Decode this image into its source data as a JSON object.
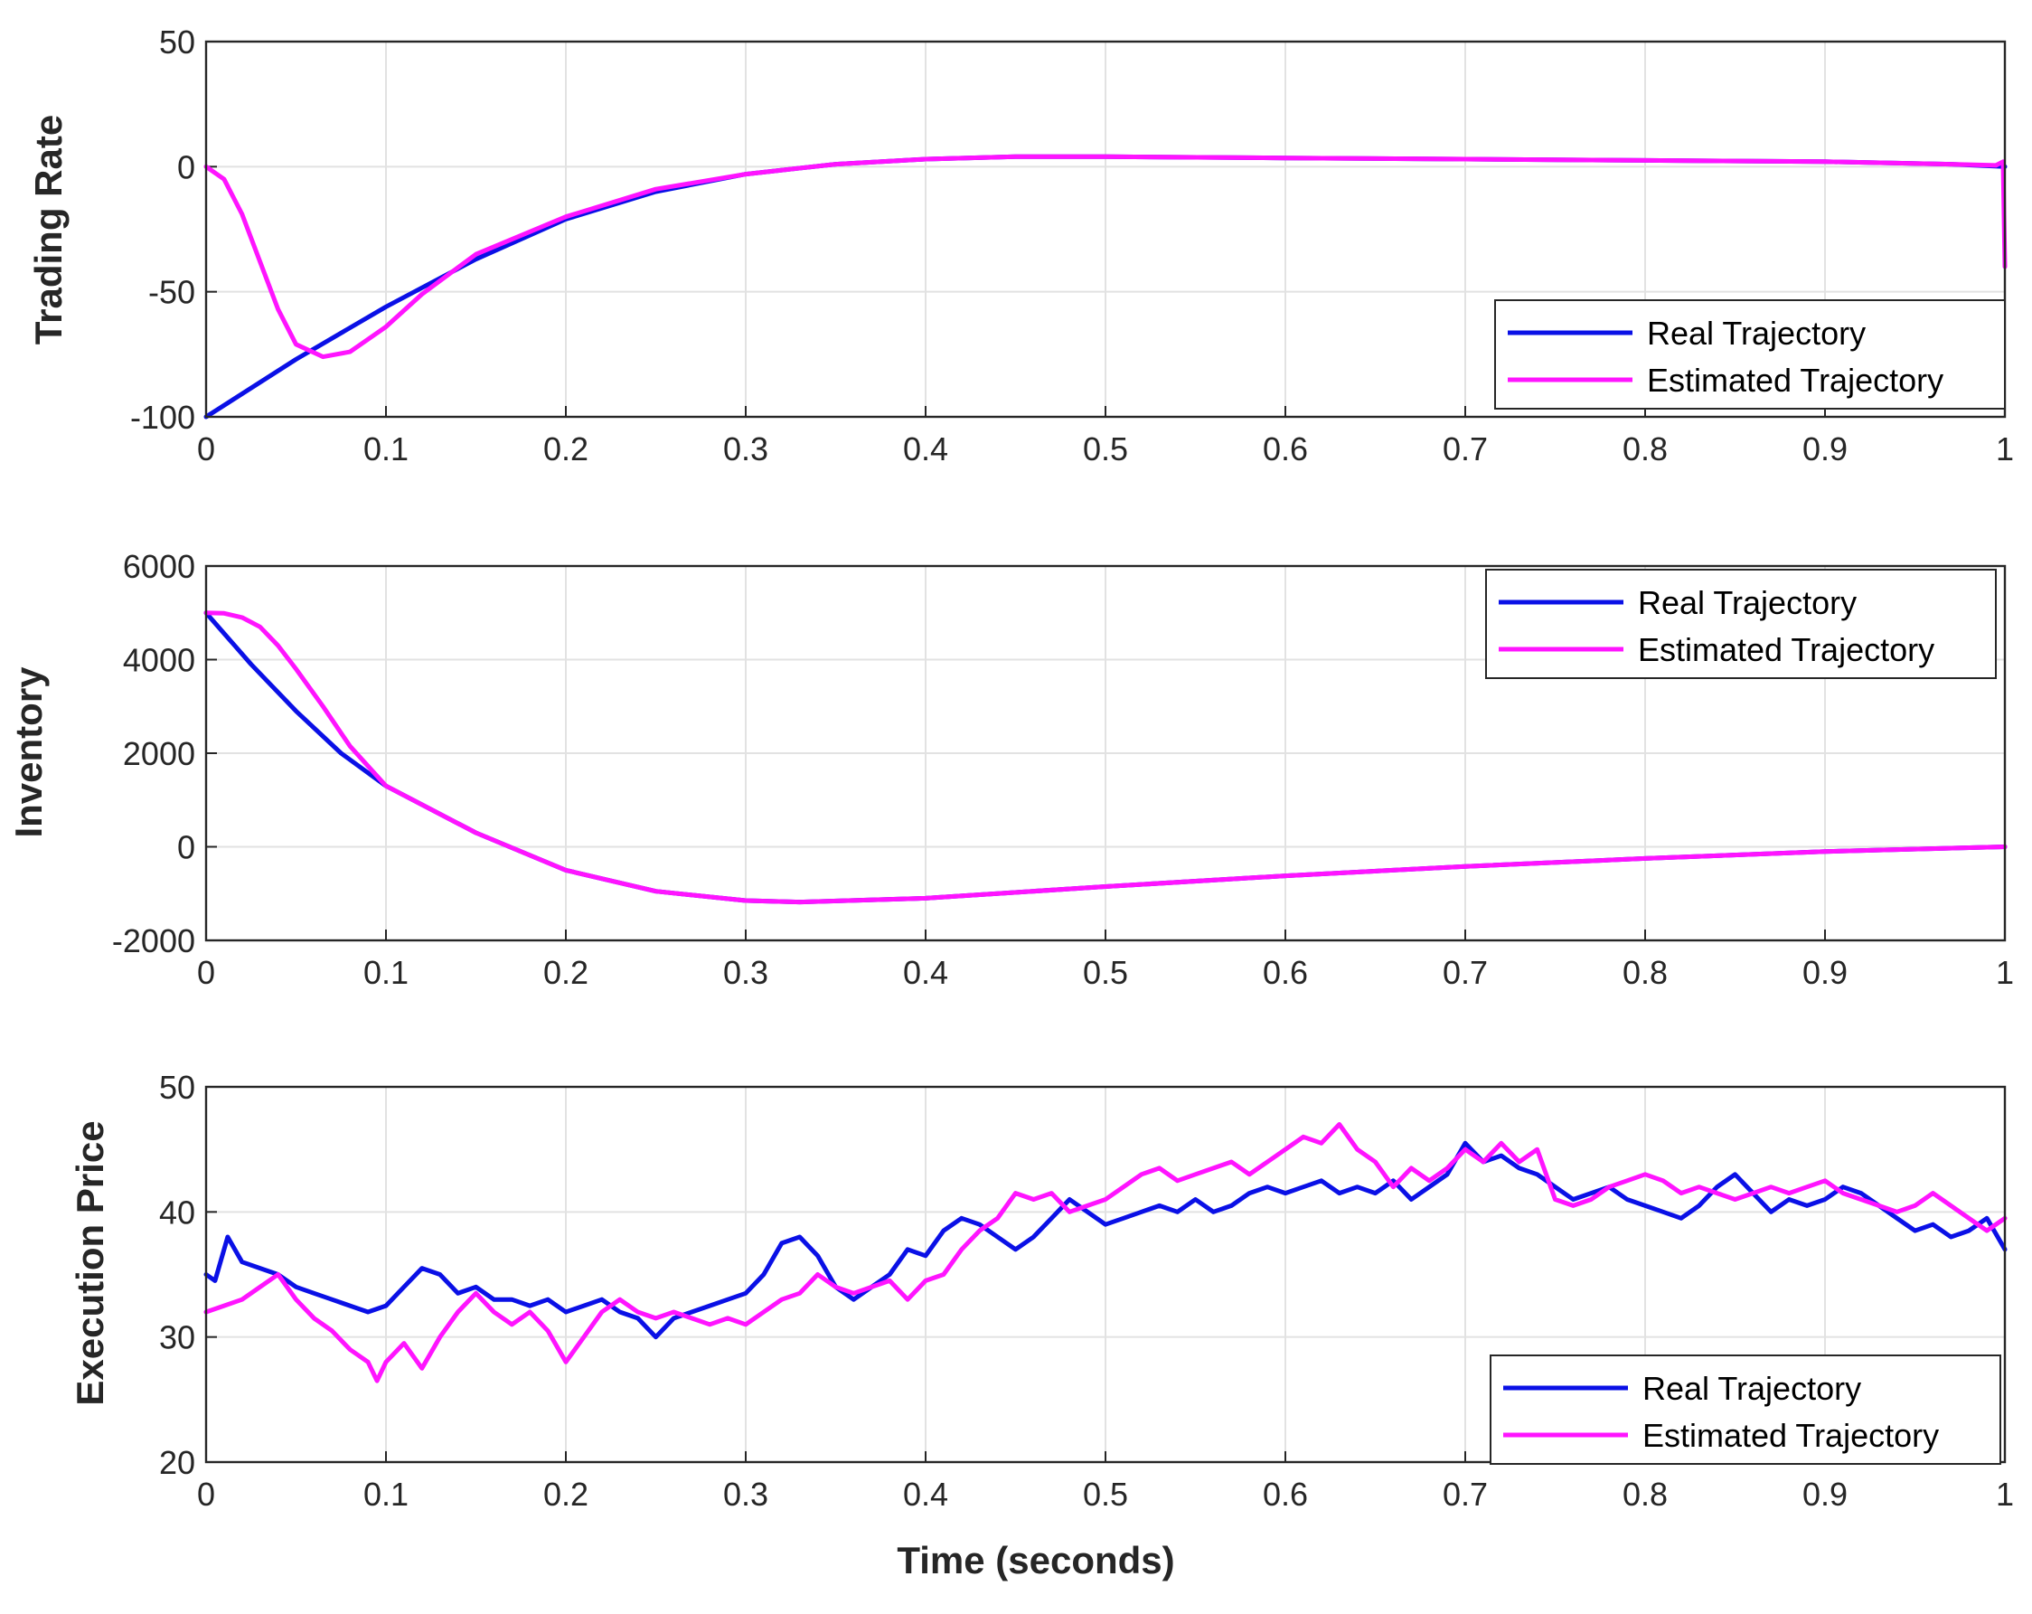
{
  "colors": {
    "real": "#0a10e6",
    "estimated": "#ff14ff",
    "axis": "#262626",
    "grid": "#e2e2e2"
  },
  "xlabel": "Time (seconds)",
  "chart_data": [
    {
      "type": "line",
      "ylabel": "Trading Rate",
      "xlim": [
        0,
        1
      ],
      "ylim": [
        -100,
        50
      ],
      "xticks": [
        "0",
        "0.1",
        "0.2",
        "0.3",
        "0.4",
        "0.5",
        "0.6",
        "0.7",
        "0.8",
        "0.9",
        "1"
      ],
      "yticks": [
        "50",
        "0",
        "-50",
        "-100"
      ],
      "grid": true,
      "legend": {
        "placement": "bottom-right",
        "entries": [
          "Real Trajectory",
          "Estimated Trajectory"
        ]
      },
      "series": [
        {
          "name": "Real Trajectory",
          "x": [
            0,
            0.05,
            0.1,
            0.15,
            0.2,
            0.25,
            0.3,
            0.35,
            0.4,
            0.45,
            0.5,
            0.6,
            0.7,
            0.8,
            0.9,
            0.97,
            1
          ],
          "y": [
            -100,
            -77,
            -56,
            -37,
            -21,
            -10,
            -3,
            1,
            3,
            4,
            4,
            3.5,
            3,
            2.5,
            2,
            1,
            0
          ]
        },
        {
          "name": "Estimated Trajectory",
          "x": [
            0,
            0.01,
            0.02,
            0.03,
            0.04,
            0.05,
            0.065,
            0.08,
            0.1,
            0.12,
            0.15,
            0.2,
            0.25,
            0.3,
            0.35,
            0.4,
            0.45,
            0.5,
            0.6,
            0.7,
            0.8,
            0.9,
            0.97,
            0.995,
            0.999,
            1
          ],
          "y": [
            0,
            -5,
            -19,
            -38,
            -57,
            -71,
            -76,
            -74,
            -64,
            -51,
            -35,
            -20,
            -9,
            -3,
            1,
            3,
            4,
            4,
            3.5,
            3,
            2.5,
            2,
            1,
            0.5,
            2,
            -40
          ]
        }
      ]
    },
    {
      "type": "line",
      "ylabel": "Inventory",
      "xlim": [
        0,
        1
      ],
      "ylim": [
        -2000,
        6000
      ],
      "xticks": [
        "0",
        "0.1",
        "0.2",
        "0.3",
        "0.4",
        "0.5",
        "0.6",
        "0.7",
        "0.8",
        "0.9",
        "1"
      ],
      "yticks": [
        "6000",
        "4000",
        "2000",
        "0",
        "-2000"
      ],
      "grid": true,
      "legend": {
        "placement": "top-right",
        "entries": [
          "Real Trajectory",
          "Estimated Trajectory"
        ]
      },
      "series": [
        {
          "name": "Real Trajectory",
          "x": [
            0,
            0.025,
            0.05,
            0.075,
            0.1,
            0.15,
            0.2,
            0.25,
            0.3,
            0.33,
            0.4,
            0.5,
            0.6,
            0.7,
            0.8,
            0.9,
            1
          ],
          "y": [
            5000,
            3900,
            2900,
            2000,
            1300,
            300,
            -500,
            -950,
            -1150,
            -1180,
            -1100,
            -850,
            -620,
            -420,
            -250,
            -100,
            0
          ]
        },
        {
          "name": "Estimated Trajectory",
          "x": [
            0,
            0.01,
            0.02,
            0.03,
            0.04,
            0.05,
            0.065,
            0.08,
            0.1,
            0.15,
            0.2,
            0.25,
            0.3,
            0.33,
            0.4,
            0.5,
            0.6,
            0.7,
            0.8,
            0.9,
            1
          ],
          "y": [
            5000,
            4990,
            4900,
            4700,
            4300,
            3800,
            3000,
            2150,
            1300,
            300,
            -500,
            -950,
            -1150,
            -1180,
            -1100,
            -850,
            -620,
            -420,
            -250,
            -100,
            0
          ]
        }
      ]
    },
    {
      "type": "line",
      "ylabel": "Execution Price",
      "xlim": [
        0,
        1
      ],
      "ylim": [
        20,
        50
      ],
      "xticks": [
        "0",
        "0.1",
        "0.2",
        "0.3",
        "0.4",
        "0.5",
        "0.6",
        "0.7",
        "0.8",
        "0.9",
        "1"
      ],
      "yticks": [
        "50",
        "40",
        "30",
        "20"
      ],
      "grid": true,
      "legend": {
        "placement": "bottom-right",
        "entries": [
          "Real Trajectory",
          "Estimated Trajectory"
        ]
      },
      "series": [
        {
          "name": "Real Trajectory",
          "x": [
            0,
            0.005,
            0.012,
            0.02,
            0.03,
            0.04,
            0.05,
            0.06,
            0.07,
            0.08,
            0.09,
            0.1,
            0.11,
            0.12,
            0.13,
            0.14,
            0.15,
            0.16,
            0.17,
            0.18,
            0.19,
            0.2,
            0.21,
            0.22,
            0.23,
            0.24,
            0.25,
            0.26,
            0.27,
            0.28,
            0.29,
            0.3,
            0.31,
            0.32,
            0.33,
            0.34,
            0.35,
            0.36,
            0.37,
            0.38,
            0.39,
            0.4,
            0.41,
            0.42,
            0.43,
            0.44,
            0.45,
            0.46,
            0.47,
            0.48,
            0.49,
            0.5,
            0.51,
            0.52,
            0.53,
            0.54,
            0.55,
            0.56,
            0.57,
            0.58,
            0.59,
            0.6,
            0.61,
            0.62,
            0.63,
            0.64,
            0.65,
            0.66,
            0.67,
            0.68,
            0.69,
            0.7,
            0.71,
            0.72,
            0.73,
            0.74,
            0.75,
            0.76,
            0.77,
            0.78,
            0.79,
            0.8,
            0.81,
            0.82,
            0.83,
            0.84,
            0.85,
            0.86,
            0.87,
            0.88,
            0.89,
            0.9,
            0.91,
            0.92,
            0.93,
            0.94,
            0.95,
            0.96,
            0.97,
            0.98,
            0.99,
            1
          ],
          "y": [
            35,
            34.5,
            38,
            36,
            35.5,
            35,
            34,
            33.5,
            33,
            32.5,
            32,
            32.5,
            34,
            35.5,
            35,
            33.5,
            34,
            33,
            33,
            32.5,
            33,
            32,
            32.5,
            33,
            32,
            31.5,
            30,
            31.5,
            32,
            32.5,
            33,
            33.5,
            35,
            37.5,
            38,
            36.5,
            34,
            33,
            34,
            35,
            37,
            36.5,
            38.5,
            39.5,
            39,
            38,
            37,
            38,
            39.5,
            41,
            40,
            39,
            39.5,
            40,
            40.5,
            40,
            41,
            40,
            40.5,
            41.5,
            42,
            41.5,
            42,
            42.5,
            41.5,
            42,
            41.5,
            42.5,
            41,
            42,
            43,
            45.5,
            44,
            44.5,
            43.5,
            43,
            42,
            41,
            41.5,
            42,
            41,
            40.5,
            40,
            39.5,
            40.5,
            42,
            43,
            41.5,
            40,
            41,
            40.5,
            41,
            42,
            41.5,
            40.5,
            39.5,
            38.5,
            39,
            38,
            38.5,
            39.5,
            37
          ]
        },
        {
          "name": "Estimated Trajectory",
          "x": [
            0,
            0.01,
            0.02,
            0.03,
            0.04,
            0.05,
            0.06,
            0.07,
            0.08,
            0.09,
            0.095,
            0.1,
            0.11,
            0.12,
            0.13,
            0.14,
            0.15,
            0.16,
            0.17,
            0.18,
            0.19,
            0.2,
            0.21,
            0.22,
            0.23,
            0.24,
            0.25,
            0.26,
            0.27,
            0.28,
            0.29,
            0.3,
            0.31,
            0.32,
            0.33,
            0.34,
            0.35,
            0.36,
            0.37,
            0.38,
            0.39,
            0.4,
            0.41,
            0.42,
            0.43,
            0.44,
            0.45,
            0.46,
            0.47,
            0.48,
            0.49,
            0.5,
            0.51,
            0.52,
            0.53,
            0.54,
            0.55,
            0.56,
            0.57,
            0.58,
            0.59,
            0.6,
            0.61,
            0.62,
            0.63,
            0.64,
            0.65,
            0.66,
            0.67,
            0.68,
            0.69,
            0.7,
            0.71,
            0.72,
            0.73,
            0.74,
            0.75,
            0.76,
            0.77,
            0.78,
            0.79,
            0.8,
            0.81,
            0.82,
            0.83,
            0.84,
            0.85,
            0.86,
            0.87,
            0.88,
            0.89,
            0.9,
            0.91,
            0.92,
            0.93,
            0.94,
            0.95,
            0.96,
            0.97,
            0.98,
            0.99,
            1
          ],
          "y": [
            32,
            32.5,
            33,
            34,
            35,
            33,
            31.5,
            30.5,
            29,
            28,
            26.5,
            28,
            29.5,
            27.5,
            30,
            32,
            33.5,
            32,
            31,
            32,
            30.5,
            28,
            30,
            32,
            33,
            32,
            31.5,
            32,
            31.5,
            31,
            31.5,
            31,
            32,
            33,
            33.5,
            35,
            34,
            33.5,
            34,
            34.5,
            33,
            34.5,
            35,
            37,
            38.5,
            39.5,
            41.5,
            41,
            41.5,
            40,
            40.5,
            41,
            42,
            43,
            43.5,
            42.5,
            43,
            43.5,
            44,
            43,
            44,
            45,
            46,
            45.5,
            47,
            45,
            44,
            42,
            43.5,
            42.5,
            43.5,
            45,
            44,
            45.5,
            44,
            45,
            41,
            40.5,
            41,
            42,
            42.5,
            43,
            42.5,
            41.5,
            42,
            41.5,
            41,
            41.5,
            42,
            41.5,
            42,
            42.5,
            41.5,
            41,
            40.5,
            40,
            40.5,
            41.5,
            40.5,
            39.5,
            38.5,
            39.5
          ]
        }
      ]
    }
  ]
}
